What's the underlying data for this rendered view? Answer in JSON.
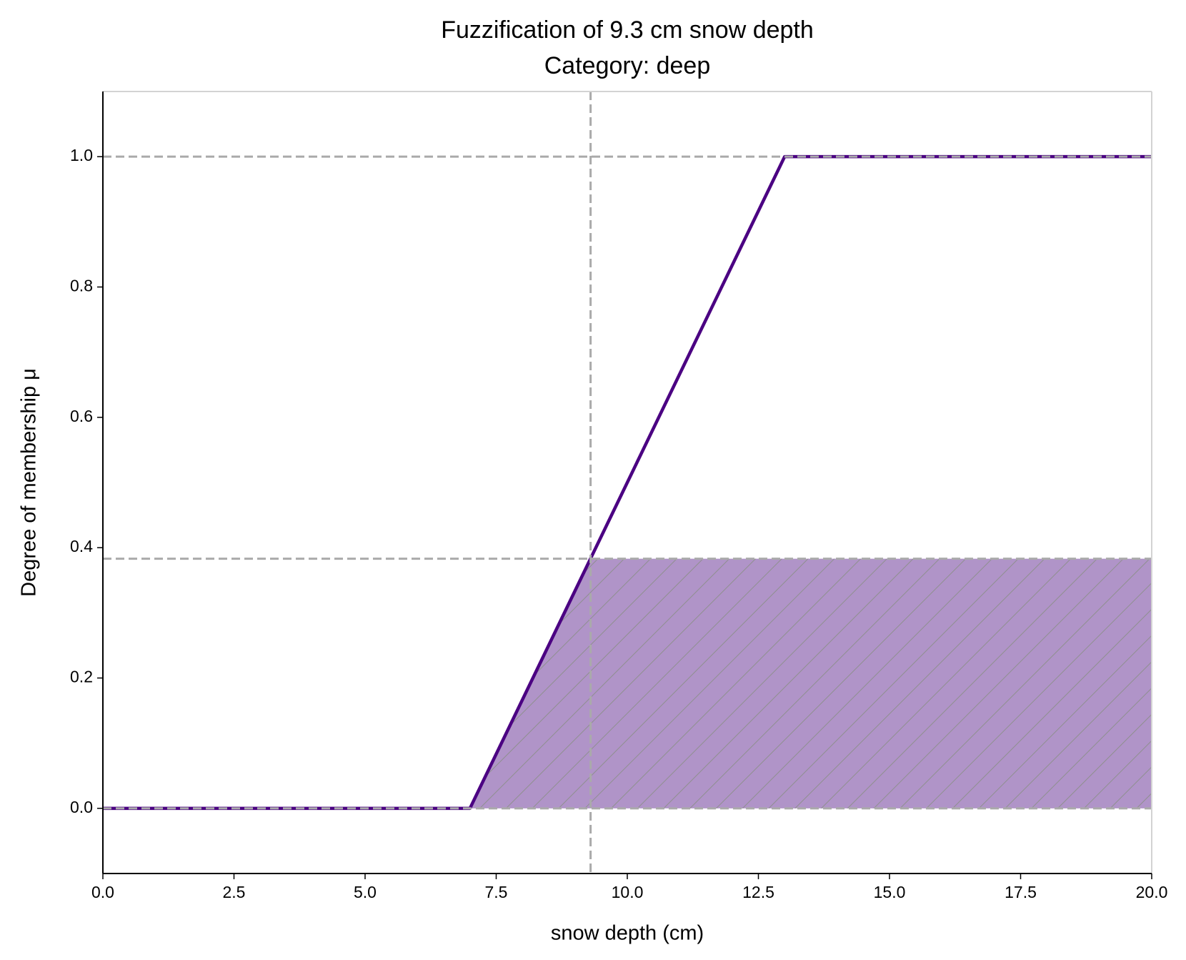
{
  "chart_data": {
    "type": "line",
    "title": "Fuzzification of 9.3 cm snow depth",
    "subtitle": "Category: deep",
    "x_label": "snow depth (cm)",
    "y_label": "Degree of membership μ",
    "series": [
      {
        "color": "#4b0082",
        "x": [
          0,
          7,
          13,
          20
        ],
        "values": [
          0,
          0,
          1,
          1
        ]
      }
    ],
    "crisp_input": 9.3,
    "membership": 0.383,
    "hlines": [
      0,
      1
    ],
    "fill_color": "#b094c8",
    "reference_color": "#aaaaaa",
    "xlim": [
      0,
      20
    ],
    "ylim": [
      -0.1,
      1.1
    ],
    "xticks": [
      {
        "value": 0,
        "label": "0.0"
      },
      2.5,
      {
        "value": 5,
        "label": "5.0"
      },
      7.5,
      {
        "value": 10,
        "label": "10.0"
      },
      12.5,
      {
        "value": 15,
        "label": "15.0"
      },
      17.5,
      {
        "value": 20,
        "label": "20.0"
      }
    ],
    "yticks": [
      {
        "value": 0,
        "label": "0.0"
      },
      0.2,
      0.4,
      0.6,
      0.8,
      {
        "value": 1,
        "label": "1.0"
      }
    ]
  }
}
